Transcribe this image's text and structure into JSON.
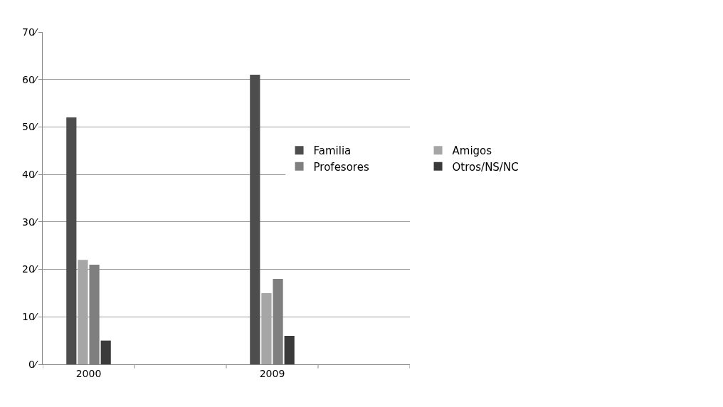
{
  "chart_data": {
    "type": "bar",
    "categories": [
      "2000",
      null,
      "2009",
      null
    ],
    "series": [
      {
        "name": "Familia",
        "color": "#4d4d4d",
        "values": [
          52,
          null,
          61,
          null
        ]
      },
      {
        "name": "Amigos",
        "color": "#a6a6a6",
        "values": [
          22,
          null,
          15,
          null
        ]
      },
      {
        "name": "Profesores",
        "color": "#7f7f7f",
        "values": [
          21,
          null,
          18,
          null
        ]
      },
      {
        "name": "Otros/NS/NC",
        "color": "#3a3a3a",
        "values": [
          5,
          null,
          6,
          null
        ]
      }
    ],
    "ylim": [
      0,
      70
    ],
    "yticks": [
      {
        "value": 0,
        "label": "0⁄"
      },
      {
        "value": 10,
        "label": "10⁄"
      },
      {
        "value": 20,
        "label": "20⁄"
      },
      {
        "value": 30,
        "label": "30⁄"
      },
      {
        "value": 40,
        "label": "40⁄"
      },
      {
        "value": 50,
        "label": "50⁄"
      },
      {
        "value": 60,
        "label": "60⁄"
      },
      {
        "value": 70,
        "label": "70⁄"
      }
    ],
    "grid": "y",
    "legend": "right"
  }
}
